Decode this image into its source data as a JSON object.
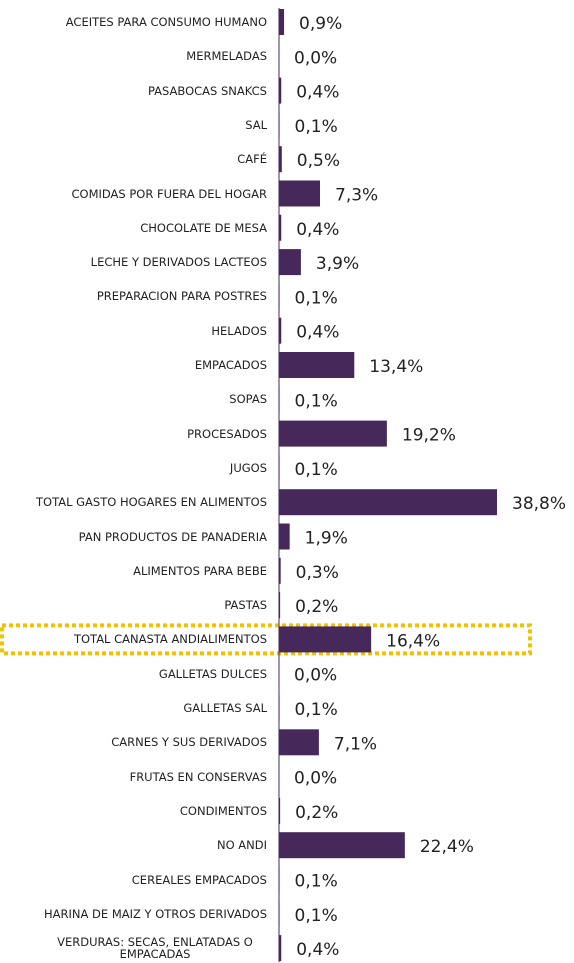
{
  "chart_data": {
    "type": "bar",
    "orientation": "horizontal",
    "color": "#46295a",
    "categories": [
      "ACEITES PARA CONSUMO HUMANO",
      "MERMELADAS",
      "PASABOCAS SNAKCS",
      "SAL",
      "CAFÉ",
      "COMIDAS POR FUERA DEL HOGAR",
      "CHOCOLATE DE MESA",
      "LECHE Y DERIVADOS LACTEOS",
      "PREPARACION PARA POSTRES",
      "HELADOS",
      "EMPACADOS",
      "SOPAS",
      "PROCESADOS",
      "JUGOS",
      "TOTAL GASTO HOGARES EN ALIMENTOS",
      "PAN PRODUCTOS DE PANADERIA",
      "ALIMENTOS PARA BEBE",
      "PASTAS",
      "TOTAL CANASTA ANDIALIMENTOS",
      "GALLETAS DULCES",
      "GALLETAS SAL",
      "CARNES Y SUS DERIVADOS",
      "FRUTAS EN CONSERVAS",
      "CONDIMENTOS",
      "NO ANDI",
      "CEREALES EMPACADOS",
      "HARINA DE MAIZ Y OTROS DERIVADOS",
      "VERDURAS: SECAS, ENLATADAS O EMPACADAS"
    ],
    "values": [
      0.9,
      0.0,
      0.4,
      0.1,
      0.5,
      7.3,
      0.4,
      3.9,
      0.1,
      0.4,
      13.4,
      0.1,
      19.2,
      0.1,
      38.8,
      1.9,
      0.3,
      0.2,
      16.4,
      0.0,
      0.1,
      7.1,
      0.0,
      0.2,
      22.4,
      0.1,
      0.1,
      0.4
    ],
    "value_labels": [
      "0,9%",
      "0,0%",
      "0,4%",
      "0,1%",
      "0,5%",
      "7,3%",
      "0,4%",
      "3,9%",
      "0,1%",
      "0,4%",
      "13,4%",
      "0,1%",
      "19,2%",
      "0,1%",
      "38,8%",
      "1,9%",
      "0,3%",
      "0,2%",
      "16,4%",
      "0,0%",
      "0,1%",
      "7,1%",
      "0,0%",
      "0,2%",
      "22,4%",
      "0,1%",
      "0,1%",
      "0,4%"
    ]
  }
}
